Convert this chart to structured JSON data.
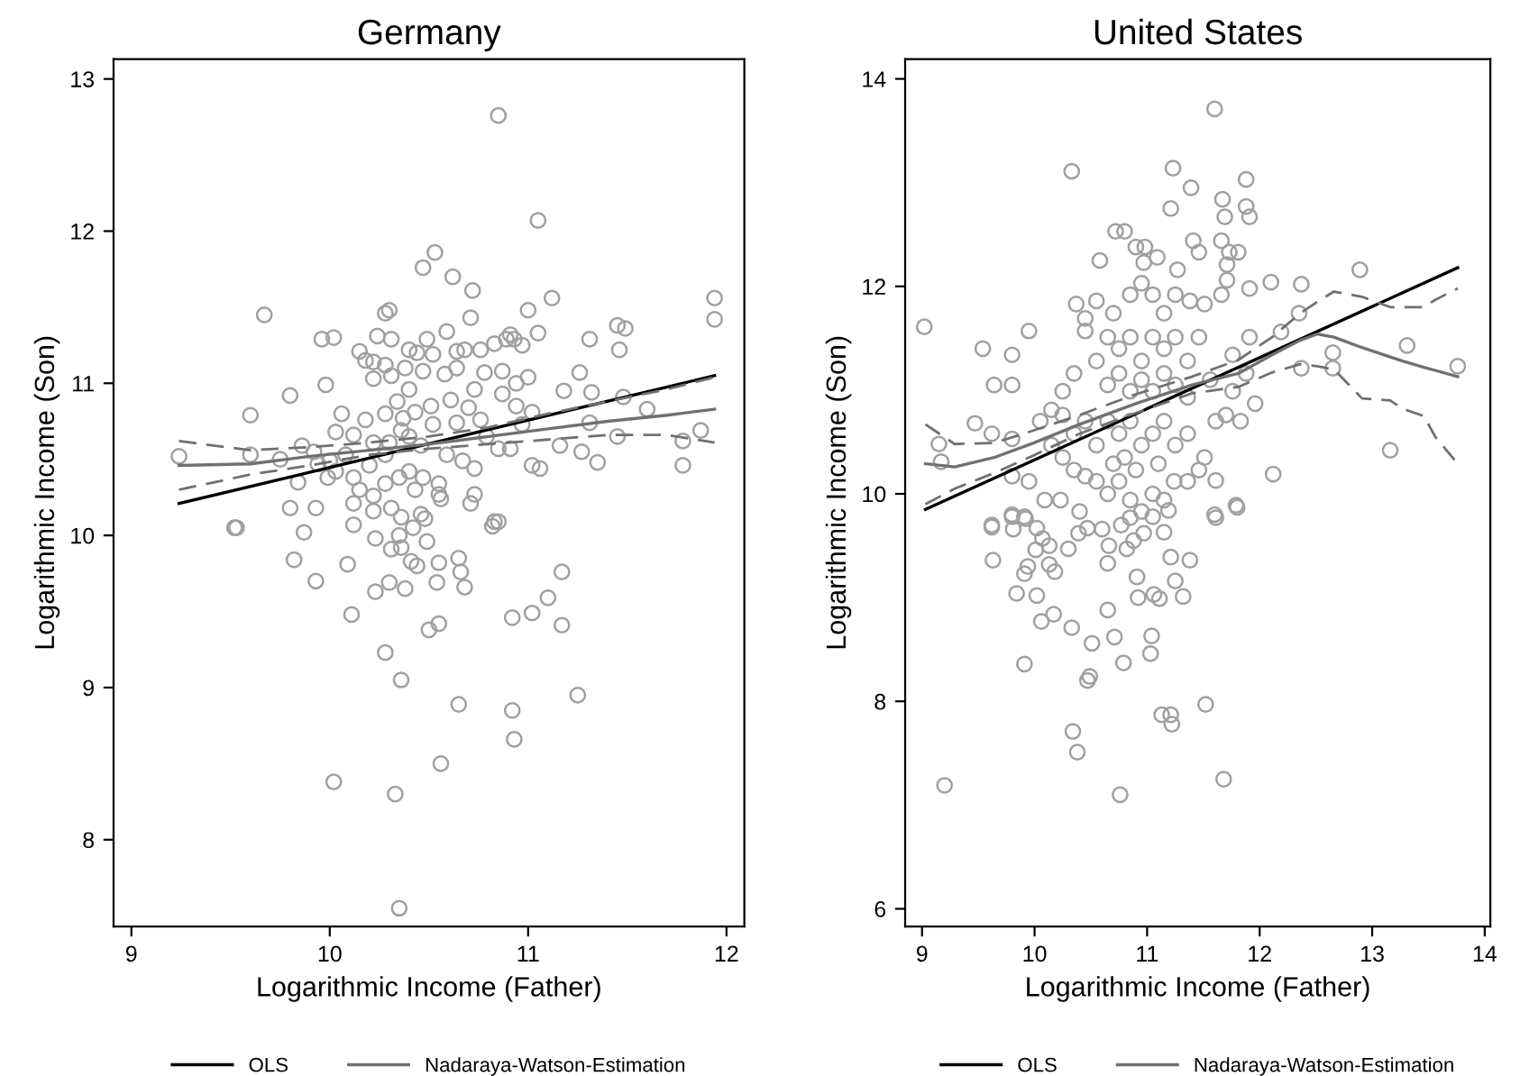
{
  "chart_data": [
    {
      "type": "scatter",
      "title": "Germany",
      "xlabel": "Logarithmic Income (Father)",
      "ylabel": "Logarithmic Income (Son)",
      "xlim": [
        8.91,
        12.09
      ],
      "ylim": [
        7.43,
        13.13
      ],
      "xticks": [
        9,
        10,
        11,
        12
      ],
      "yticks": [
        8,
        9,
        10,
        11,
        12,
        13
      ],
      "grid": false,
      "legend": "bottom",
      "series": [
        {
          "marker": "circle",
          "color": "#a0a0a0",
          "x": [
            9.24,
            10.85,
            11.05,
            10.53,
            10.47,
            10.62,
            10.72,
            11.12,
            11.94,
            11.94,
            9.67,
            11.0,
            10.28,
            10.3,
            9.96,
            10.02,
            10.24,
            10.31,
            11.45,
            11.49,
            11.31,
            11.46,
            11.05,
            10.93,
            9.8,
            9.98,
            9.6,
            11.6,
            11.78,
            11.78,
            11.87,
            11.35,
            11.27,
            11.16,
            11.06,
            11.02,
            11.31,
            11.18,
            11.26,
            11.32,
            11.45,
            11.48,
            9.6,
            9.75,
            9.86,
            9.92,
            9.8,
            9.93,
            9.84,
            9.53,
            9.87,
            10.83,
            9.52,
            9.82,
            9.93,
            10.09,
            10.11,
            10.23,
            10.3,
            10.38,
            10.28,
            10.36,
            10.54,
            10.5,
            10.55,
            10.65,
            10.66,
            10.68,
            10.56,
            10.65,
            10.02,
            10.33,
            10.35,
            10.92,
            11.02,
            11.1,
            11.17,
            11.17,
            11.25,
            10.92,
            10.93,
            10.49,
            10.31,
            10.36,
            10.41,
            10.44,
            10.55,
            10.23,
            10.35,
            10.12,
            10.82,
            10.85,
            10.48,
            10.42,
            10.15,
            10.18,
            10.22,
            10.28,
            10.22,
            10.31,
            10.38,
            10.4,
            10.44,
            10.49,
            10.52,
            10.59,
            10.64,
            10.68,
            10.76,
            10.71,
            10.83,
            10.89,
            10.91,
            10.97,
            11.0,
            10.94,
            10.87,
            10.78,
            10.73,
            10.64,
            10.58,
            10.47,
            10.4,
            10.34,
            10.28,
            10.18,
            10.12,
            10.03,
            10.06,
            10.22,
            10.3,
            10.37,
            10.4,
            10.46,
            10.52,
            10.59,
            10.64,
            10.7,
            10.76,
            10.79,
            10.85,
            10.91,
            10.97,
            11.02,
            10.94,
            10.87,
            10.61,
            10.51,
            10.43,
            10.36,
            10.28,
            10.2,
            10.12,
            10.15,
            10.22,
            10.28,
            10.35,
            10.4,
            10.43,
            10.47,
            10.55,
            10.73,
            10.67,
            10.73,
            10.71,
            10.55,
            10.12,
            10.22,
            10.31,
            10.36,
            10.46,
            10.56,
            10.03,
            9.99,
            10.08,
            10.0,
            9.94
          ],
          "values": [
            10.52,
            12.76,
            12.07,
            11.86,
            11.76,
            11.7,
            11.61,
            11.56,
            11.56,
            11.42,
            11.45,
            11.48,
            11.46,
            11.48,
            11.29,
            11.3,
            11.31,
            11.29,
            11.38,
            11.36,
            11.29,
            11.22,
            11.33,
            11.29,
            10.92,
            10.99,
            10.79,
            10.83,
            10.62,
            10.46,
            10.69,
            10.48,
            10.55,
            10.59,
            10.44,
            10.46,
            10.74,
            10.95,
            11.07,
            10.94,
            10.65,
            10.91,
            10.53,
            10.5,
            10.59,
            10.55,
            10.18,
            10.18,
            10.35,
            10.05,
            10.02,
            10.09,
            10.05,
            9.84,
            9.7,
            9.81,
            9.48,
            9.63,
            9.69,
            9.65,
            9.23,
            9.05,
            9.69,
            9.38,
            9.42,
            9.85,
            9.76,
            9.66,
            8.5,
            8.89,
            8.38,
            8.3,
            7.55,
            9.46,
            9.49,
            9.59,
            9.76,
            9.41,
            8.95,
            8.85,
            8.66,
            9.96,
            9.91,
            9.92,
            9.83,
            9.8,
            9.82,
            9.98,
            10.0,
            10.07,
            10.06,
            10.09,
            10.11,
            10.05,
            11.21,
            11.15,
            11.14,
            11.12,
            11.03,
            11.05,
            11.1,
            11.22,
            11.2,
            11.29,
            11.19,
            11.34,
            11.21,
            11.22,
            11.22,
            11.43,
            11.26,
            11.29,
            11.32,
            11.25,
            11.04,
            11.0,
            11.08,
            11.07,
            10.96,
            11.1,
            11.06,
            11.08,
            10.96,
            10.88,
            10.8,
            10.76,
            10.66,
            10.68,
            10.8,
            10.61,
            10.61,
            10.77,
            10.65,
            10.59,
            10.73,
            10.53,
            10.74,
            10.84,
            10.76,
            10.65,
            10.57,
            10.57,
            10.73,
            10.81,
            10.85,
            10.93,
            10.89,
            10.85,
            10.81,
            10.69,
            10.53,
            10.46,
            10.38,
            10.3,
            10.26,
            10.34,
            10.38,
            10.42,
            10.3,
            10.38,
            10.34,
            10.44,
            10.49,
            10.27,
            10.21,
            10.27,
            10.21,
            10.16,
            10.18,
            10.12,
            10.14,
            10.24,
            10.42,
            10.38,
            10.53,
            10.49,
            10.47
          ]
        },
        {
          "type": "line",
          "name": "OLS",
          "color": "#000000",
          "x": [
            9.24,
            11.94
          ],
          "values": [
            10.21,
            11.05
          ]
        },
        {
          "type": "line",
          "name": "Nadaraya-Watson-Estimation",
          "color": "#707070",
          "x": [
            9.24,
            9.6,
            9.9,
            10.2,
            10.5,
            10.8,
            11.1,
            11.4,
            11.7,
            11.94
          ],
          "values": [
            10.46,
            10.47,
            10.52,
            10.56,
            10.6,
            10.65,
            10.7,
            10.75,
            10.79,
            10.83
          ]
        },
        {
          "type": "line",
          "line_style": "dashed",
          "color": "#707070",
          "x": [
            9.24,
            9.6,
            9.9,
            10.2,
            10.5,
            10.8,
            11.1,
            11.4,
            11.7,
            11.94
          ],
          "values": [
            10.62,
            10.56,
            10.58,
            10.61,
            10.65,
            10.71,
            10.8,
            10.88,
            10.96,
            11.04
          ]
        },
        {
          "type": "line",
          "line_style": "dashed",
          "color": "#707070",
          "x": [
            9.24,
            9.6,
            9.9,
            10.2,
            10.5,
            10.8,
            11.1,
            11.4,
            11.7,
            11.94
          ],
          "values": [
            10.3,
            10.4,
            10.46,
            10.53,
            10.57,
            10.6,
            10.63,
            10.66,
            10.66,
            10.61
          ]
        }
      ]
    },
    {
      "type": "scatter",
      "title": "United States",
      "xlabel": "Logarithmic Income (Father)",
      "ylabel": "Logarithmic Income (Son)",
      "xlim": [
        8.85,
        14.05
      ],
      "ylim": [
        5.83,
        14.19
      ],
      "xticks": [
        9,
        10,
        11,
        12,
        13,
        14
      ],
      "yticks": [
        6,
        8,
        10,
        12,
        14
      ],
      "grid": false,
      "legend": "bottom",
      "series": [
        {
          "marker": "circle",
          "color": "#a0a0a0",
          "x": [
            11.6,
            10.33,
            11.23,
            11.39,
            11.88,
            11.67,
            11.69,
            11.88,
            11.91,
            11.21,
            10.72,
            10.8,
            10.58,
            11.27,
            12.1,
            12.37,
            12.89,
            12.35,
            12.19,
            12.37,
            12.65,
            12.65,
            13.31,
            13.76,
            13.16,
            12.12,
            9.02,
            9.54,
            9.95,
            9.8,
            9.64,
            9.8,
            9.47,
            9.62,
            9.8,
            9.15,
            9.17,
            9.8,
            9.95,
            9.62,
            9.8,
            9.92,
            10.09,
            10.23,
            10.4,
            11.61,
            11.8,
            11.61,
            11.96,
            11.7,
            11.83,
            11.91,
            11.76,
            11.88,
            11.76,
            11.61,
            11.56,
            11.51,
            11.46,
            11.36,
            11.24,
            11.15,
            11.05,
            10.95,
            10.85,
            10.75,
            10.65,
            10.55,
            10.45,
            10.35,
            10.25,
            10.15,
            10.05,
            10.15,
            10.25,
            10.35,
            10.37,
            10.45,
            10.55,
            10.7,
            10.85,
            10.95,
            11.05,
            11.15,
            11.25,
            11.38,
            11.51,
            11.41,
            11.46,
            11.66,
            11.73,
            11.71,
            11.81,
            11.71,
            11.66,
            11.91,
            10.9,
            10.98,
            11.09,
            10.97,
            10.45,
            10.55,
            10.65,
            10.75,
            10.85,
            10.95,
            11.05,
            11.15,
            11.25,
            11.36,
            11.46,
            10.65,
            10.75,
            10.85,
            10.95,
            11.05,
            11.15,
            11.25,
            11.36,
            10.65,
            10.75,
            10.85,
            10.95,
            11.05,
            11.15,
            11.25,
            11.36,
            10.45,
            10.55,
            10.35,
            10.25,
            10.8,
            10.9,
            11.1,
            10.7,
            9.62,
            9.63,
            9.8,
            9.81,
            9.91,
            10.02,
            10.01,
            10.13,
            10.07,
            9.94,
            9.91,
            10.13,
            10.18,
            9.84,
            10.02,
            10.06,
            10.17,
            10.3,
            10.33,
            10.39,
            10.47,
            10.6,
            10.66,
            10.65,
            10.77,
            10.82,
            10.85,
            10.88,
            10.91,
            10.92,
            10.97,
            11.05,
            11.15,
            11.19,
            11.21,
            11.25,
            11.38,
            11.32,
            11.06,
            11.11,
            10.65,
            10.71,
            10.51,
            11.04,
            11.03,
            9.91,
            10.79,
            10.49,
            10.47,
            11.52,
            11.13,
            11.21,
            11.22,
            10.34,
            10.38,
            9.2,
            10.76,
            11.68,
            11.6,
            11.79
          ],
          "values": [
            13.71,
            13.11,
            13.14,
            12.95,
            13.03,
            12.84,
            12.67,
            12.77,
            12.67,
            12.75,
            12.53,
            12.53,
            12.25,
            12.16,
            12.04,
            12.02,
            12.16,
            11.74,
            11.56,
            11.21,
            11.21,
            11.36,
            11.43,
            11.23,
            10.42,
            10.19,
            11.61,
            11.4,
            11.57,
            11.34,
            11.05,
            11.05,
            10.68,
            10.58,
            10.53,
            10.48,
            10.31,
            10.17,
            10.12,
            9.68,
            9.78,
            9.76,
            9.94,
            9.94,
            9.83,
            9.77,
            9.87,
            10.13,
            10.87,
            10.76,
            10.7,
            11.51,
            11.34,
            11.16,
            10.99,
            10.7,
            11.1,
            10.35,
            10.23,
            10.12,
            10.12,
            9.94,
            10.0,
            9.83,
            9.94,
            10.12,
            10.0,
            10.12,
            10.17,
            10.23,
            10.35,
            10.47,
            10.7,
            10.81,
            10.99,
            11.16,
            11.83,
            11.69,
            11.86,
            11.74,
            11.92,
            12.03,
            11.92,
            11.74,
            11.92,
            11.86,
            11.83,
            12.44,
            12.33,
            12.44,
            12.33,
            12.21,
            12.33,
            12.06,
            11.92,
            11.98,
            12.38,
            12.38,
            12.28,
            12.23,
            11.57,
            11.28,
            11.51,
            11.4,
            11.51,
            11.28,
            11.51,
            11.4,
            11.51,
            11.28,
            11.51,
            11.05,
            11.16,
            10.99,
            11.1,
            10.99,
            11.16,
            11.05,
            10.93,
            10.7,
            10.58,
            10.7,
            10.47,
            10.58,
            10.7,
            10.47,
            10.58,
            10.7,
            10.47,
            10.58,
            10.76,
            10.35,
            10.23,
            10.29,
            10.29,
            9.7,
            9.36,
            9.8,
            9.66,
            9.78,
            9.67,
            9.46,
            9.5,
            9.57,
            9.3,
            9.23,
            9.32,
            9.25,
            9.04,
            9.02,
            8.77,
            8.84,
            9.47,
            8.71,
            9.62,
            9.67,
            9.66,
            9.5,
            9.33,
            9.7,
            9.47,
            9.77,
            9.55,
            9.2,
            9.0,
            9.62,
            9.78,
            9.63,
            9.84,
            9.39,
            9.16,
            9.36,
            9.01,
            9.03,
            8.99,
            8.88,
            8.62,
            8.56,
            8.63,
            8.46,
            8.36,
            8.37,
            8.24,
            8.2,
            7.97,
            7.87,
            7.87,
            7.78,
            7.71,
            7.51,
            7.19,
            7.1,
            7.25,
            9.8,
            9.89
          ]
        },
        {
          "type": "line",
          "name": "OLS",
          "color": "#000000",
          "x": [
            9.03,
            13.76
          ],
          "values": [
            9.85,
            12.18
          ]
        },
        {
          "type": "line",
          "name": "Nadaraya-Watson-Estimation",
          "color": "#707070",
          "x": [
            9.03,
            9.29,
            9.64,
            9.99,
            10.4,
            10.9,
            11.4,
            11.81,
            12.11,
            12.36,
            12.51,
            12.66,
            12.91,
            13.16,
            13.27,
            13.46,
            13.56,
            13.76
          ],
          "values": [
            10.29,
            10.26,
            10.35,
            10.49,
            10.67,
            10.87,
            11.05,
            11.16,
            11.34,
            11.48,
            11.54,
            11.51,
            11.41,
            11.32,
            11.28,
            11.22,
            11.19,
            11.13
          ]
        },
        {
          "type": "line",
          "line_style": "dashed",
          "color": "#707070",
          "x": [
            9.03,
            9.29,
            9.64,
            9.99,
            10.4,
            10.9,
            11.4,
            11.81,
            12.11,
            12.36,
            12.51,
            12.66,
            12.91,
            13.16,
            13.27,
            13.46,
            13.56,
            13.76
          ],
          "values": [
            10.67,
            10.48,
            10.49,
            10.61,
            10.76,
            10.96,
            11.13,
            11.29,
            11.51,
            11.74,
            11.85,
            11.95,
            11.9,
            11.8,
            11.8,
            11.8,
            11.87,
            11.98
          ]
        },
        {
          "type": "line",
          "line_style": "dashed",
          "color": "#707070",
          "x": [
            9.03,
            9.29,
            9.64,
            9.99,
            10.4,
            10.9,
            11.4,
            11.81,
            12.11,
            12.36,
            12.51,
            12.66,
            12.91,
            13.16,
            13.27,
            13.46,
            13.56,
            13.76
          ],
          "values": [
            9.9,
            10.05,
            10.2,
            10.37,
            10.58,
            10.78,
            10.97,
            11.03,
            11.17,
            11.25,
            11.23,
            11.2,
            10.92,
            10.9,
            10.82,
            10.75,
            10.55,
            10.29
          ]
        }
      ]
    }
  ]
}
